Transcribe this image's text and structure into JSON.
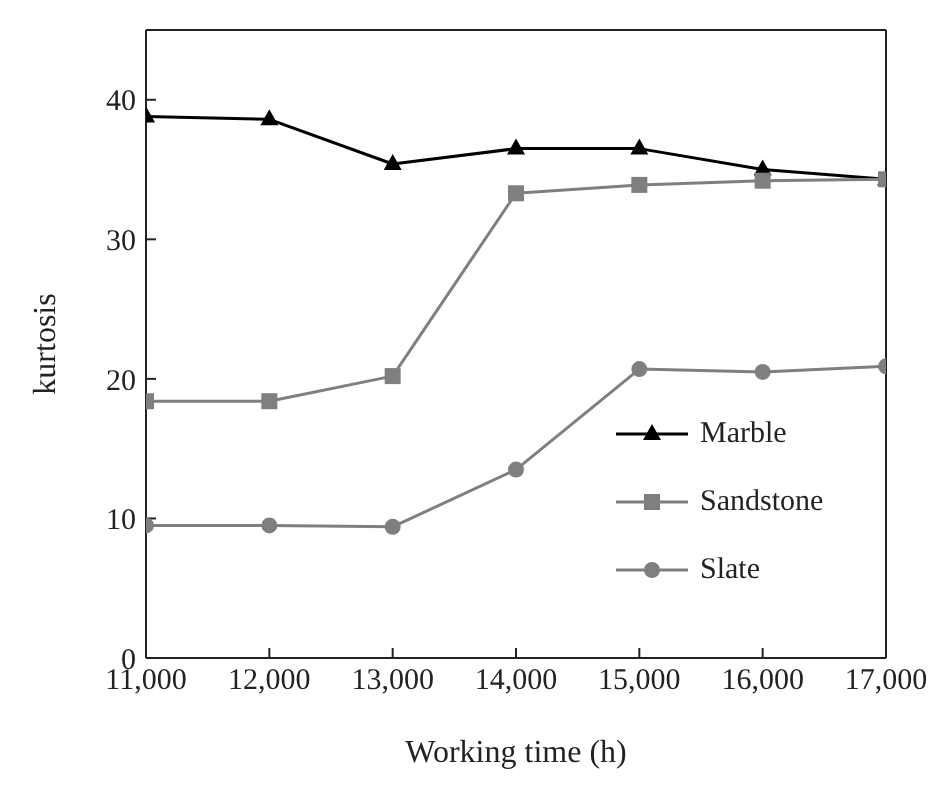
{
  "chart_data": {
    "type": "line",
    "xlabel": "Working time (h)",
    "ylabel": "kurtosis",
    "x": [
      11000,
      12000,
      13000,
      14000,
      15000,
      16000,
      17000
    ],
    "xlim": [
      11000,
      17000
    ],
    "xticks": [
      {
        "value": 11000,
        "label": "11,000"
      },
      {
        "value": 12000,
        "label": "12,000"
      },
      {
        "value": 13000,
        "label": "13,000"
      },
      {
        "value": 14000,
        "label": "14,000"
      },
      {
        "value": 15000,
        "label": "15,000"
      },
      {
        "value": 16000,
        "label": "16,000"
      },
      {
        "value": 17000,
        "label": "17,000"
      }
    ],
    "ylim": [
      0,
      45
    ],
    "yticks": [
      0,
      10,
      20,
      30,
      40
    ],
    "grid": false,
    "legend": "bottom right",
    "series": [
      {
        "name": "Marble",
        "color": "#000000",
        "marker": "triangle",
        "values": [
          38.8,
          38.6,
          35.4,
          36.5,
          36.5,
          35.0,
          34.3
        ]
      },
      {
        "name": "Sandstone",
        "color": "#7f7f7f",
        "marker": "square",
        "values": [
          18.4,
          18.4,
          20.2,
          33.3,
          33.9,
          34.2,
          34.3
        ]
      },
      {
        "name": "Slate",
        "color": "#7f7f7f",
        "marker": "circle",
        "values": [
          9.5,
          9.5,
          9.4,
          13.5,
          20.7,
          20.5,
          20.9
        ]
      }
    ]
  }
}
